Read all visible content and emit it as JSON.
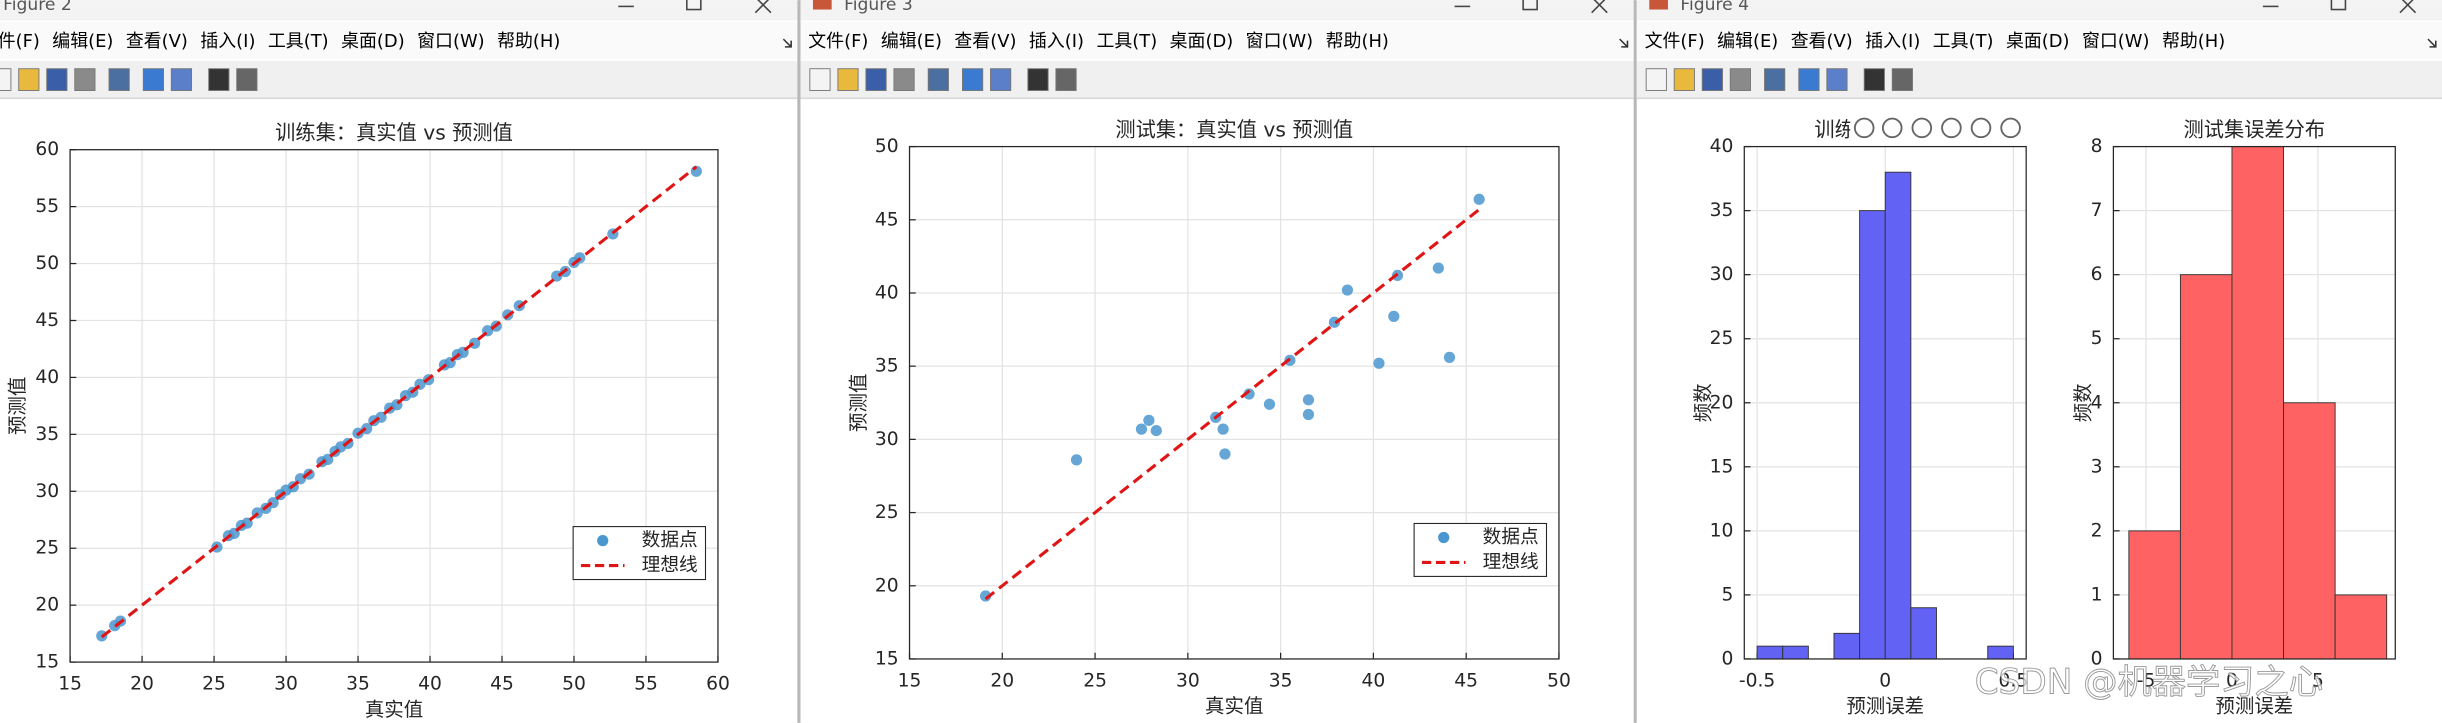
{
  "windows": [
    {
      "title": "Figure 2",
      "menu": [
        "文件(F)",
        "编辑(E)",
        "查看(V)",
        "插入(I)",
        "工具(T)",
        "桌面(D)",
        "窗口(W)",
        "帮助(H)"
      ]
    },
    {
      "title": "Figure 3",
      "menu": [
        "文件(F)",
        "编辑(E)",
        "查看(V)",
        "插入(I)",
        "工具(T)",
        "桌面(D)",
        "窗口(W)",
        "帮助(H)"
      ]
    },
    {
      "title": "Figure 4",
      "menu": [
        "文件(F)",
        "编辑(E)",
        "查看(V)",
        "插入(I)",
        "工具(T)",
        "桌面(D)",
        "窗口(W)",
        "帮助(H)"
      ]
    }
  ],
  "watermark": "CSDN @机器学习之心",
  "chart_data": [
    {
      "type": "scatter",
      "title": "训练集：真实值 vs 预测值",
      "xlabel": "真实值",
      "ylabel": "预测值",
      "xlim": [
        15,
        60
      ],
      "ylim": [
        15,
        60
      ],
      "xticks": [
        15,
        20,
        25,
        30,
        35,
        40,
        45,
        50,
        55,
        60
      ],
      "yticks": [
        15,
        20,
        25,
        30,
        35,
        40,
        45,
        50,
        55,
        60
      ],
      "grid": true,
      "legend": "lower right",
      "series": [
        {
          "name": "数据点",
          "color": "#4a97cf",
          "x": [
            17.2,
            18.1,
            18.5,
            25.2,
            26.0,
            26.4,
            26.9,
            27.3,
            28.0,
            28.6,
            29.1,
            29.6,
            30.0,
            30.5,
            31.0,
            31.6,
            32.5,
            32.9,
            33.4,
            33.8,
            34.3,
            35.0,
            35.6,
            36.1,
            36.6,
            37.2,
            37.7,
            38.3,
            38.8,
            39.3,
            39.9,
            41.0,
            41.4,
            41.9,
            42.3,
            43.1,
            44.0,
            44.6,
            45.4,
            46.2,
            48.8,
            49.4,
            50.0,
            50.4,
            52.7,
            58.5
          ],
          "values": [
            17.3,
            18.2,
            18.6,
            25.1,
            26.1,
            26.3,
            27.0,
            27.2,
            28.1,
            28.5,
            29.0,
            29.7,
            30.1,
            30.4,
            31.1,
            31.5,
            32.6,
            32.8,
            33.5,
            33.9,
            34.2,
            35.1,
            35.5,
            36.2,
            36.5,
            37.3,
            37.6,
            38.4,
            38.7,
            39.4,
            39.8,
            41.1,
            41.3,
            42.0,
            42.2,
            43.0,
            44.1,
            44.5,
            45.5,
            46.3,
            48.9,
            49.3,
            50.1,
            50.5,
            52.6,
            58.1
          ]
        },
        {
          "name": "理想线",
          "type": "line",
          "linestyle": "dashed",
          "color": "#e01515",
          "x": [
            17.2,
            58.5
          ],
          "values": [
            17.2,
            58.5
          ]
        }
      ]
    },
    {
      "type": "scatter",
      "title": "测试集：真实值 vs 预测值",
      "xlabel": "真实值",
      "ylabel": "预测值",
      "xlim": [
        15,
        50
      ],
      "ylim": [
        15,
        50
      ],
      "xticks": [
        15,
        20,
        25,
        30,
        35,
        40,
        45,
        50
      ],
      "yticks": [
        15,
        20,
        25,
        30,
        35,
        40,
        45,
        50
      ],
      "grid": true,
      "legend": "lower right",
      "series": [
        {
          "name": "数据点",
          "color": "#4a97cf",
          "x": [
            19.1,
            24.0,
            27.5,
            27.9,
            28.3,
            31.5,
            31.9,
            32.0,
            33.3,
            34.4,
            35.5,
            36.5,
            36.5,
            37.9,
            38.6,
            40.3,
            41.1,
            41.3,
            43.5,
            44.1,
            45.7
          ],
          "values": [
            19.3,
            28.6,
            30.7,
            31.3,
            30.6,
            31.5,
            30.7,
            29.0,
            33.1,
            32.4,
            35.4,
            32.7,
            31.7,
            38.0,
            40.2,
            35.2,
            38.4,
            41.2,
            41.7,
            35.6,
            46.4
          ]
        },
        {
          "name": "理想线",
          "type": "line",
          "linestyle": "dashed",
          "color": "#e01515",
          "x": [
            19.1,
            45.7
          ],
          "values": [
            19.1,
            45.7
          ]
        }
      ]
    },
    {
      "type": "histogram",
      "title": "训练集误差分布",
      "xlabel": "预测误差",
      "ylabel": "频数",
      "bins": [
        -0.5,
        -0.4,
        -0.3,
        -0.2,
        -0.1,
        0,
        0.1,
        0.2,
        0.3,
        0.4,
        0.5
      ],
      "values": [
        1,
        1,
        0,
        2,
        35,
        38,
        4,
        0,
        0,
        1
      ],
      "color": "#6262f5",
      "edgecolor": "#333333",
      "xlim": [
        -0.55,
        0.55
      ],
      "ylim": [
        0,
        40
      ],
      "xticks": [
        -0.5,
        0,
        0.5
      ],
      "yticks": [
        0,
        5,
        10,
        15,
        20,
        25,
        30,
        35,
        40
      ],
      "grid": true
    },
    {
      "type": "histogram",
      "title": "测试集误差分布",
      "xlabel": "预测误差",
      "ylabel": "频数",
      "bins": [
        -6,
        -3,
        0,
        3,
        6,
        9
      ],
      "values": [
        2,
        6,
        8,
        4,
        1
      ],
      "color": "#ff6262",
      "edgecolor": "#333333",
      "xlim": [
        -6.9,
        9.5
      ],
      "ylim": [
        0,
        8
      ],
      "xticks": [
        -5,
        0,
        5
      ],
      "yticks": [
        0,
        1,
        2,
        3,
        4,
        5,
        6,
        7,
        8
      ],
      "grid": true
    }
  ]
}
